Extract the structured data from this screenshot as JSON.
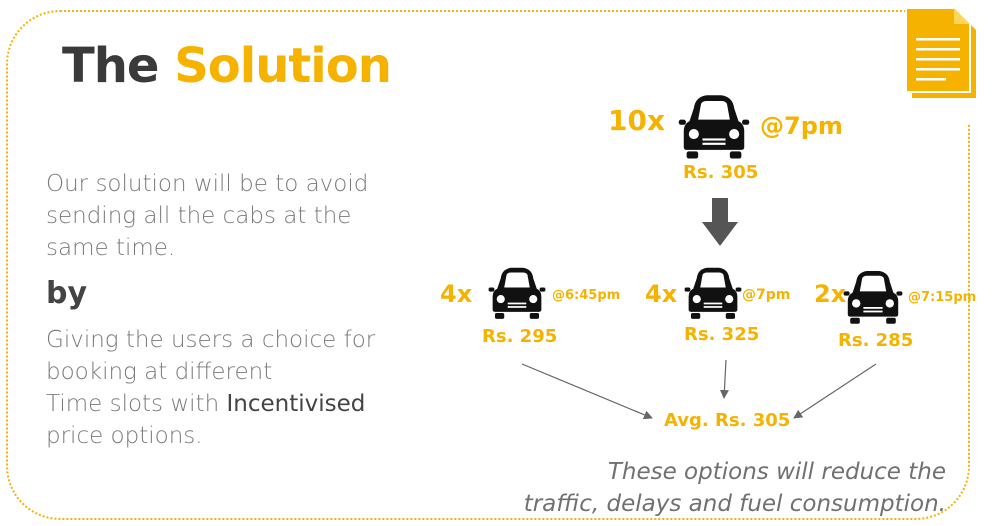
{
  "title": {
    "part1": "The",
    "part2": "Solution"
  },
  "description": {
    "line1": "Our solution will be to avoid",
    "line2": "sending all the cabs at the",
    "line3": "same time.",
    "by": "by",
    "line4": "Giving the users a choice for",
    "line5": "booking at different",
    "line6_prefix": "Time slots with",
    "line6_bold": "Incentivised",
    "line7": "price options."
  },
  "top_option": {
    "count": "10x",
    "time": "@7pm",
    "price": "Rs. 305"
  },
  "options": [
    {
      "count": "4x",
      "time": "@6:45pm",
      "price": "Rs. 295"
    },
    {
      "count": "4x",
      "time": "@7pm",
      "price": "Rs. 325"
    },
    {
      "count": "2x",
      "time": "@7:15pm",
      "price": "Rs. 285"
    }
  ],
  "average": "Avg. Rs. 305",
  "footnote": {
    "line1": "These options will reduce the",
    "line2": "traffic, delays and fuel consumption."
  },
  "colors": {
    "accent": "#f5b300",
    "dark_text": "#3a3a3a",
    "body_text": "#7a7a7a",
    "car": "#111111"
  },
  "icons": [
    "document-icon",
    "car-icon",
    "arrow-down-icon"
  ]
}
